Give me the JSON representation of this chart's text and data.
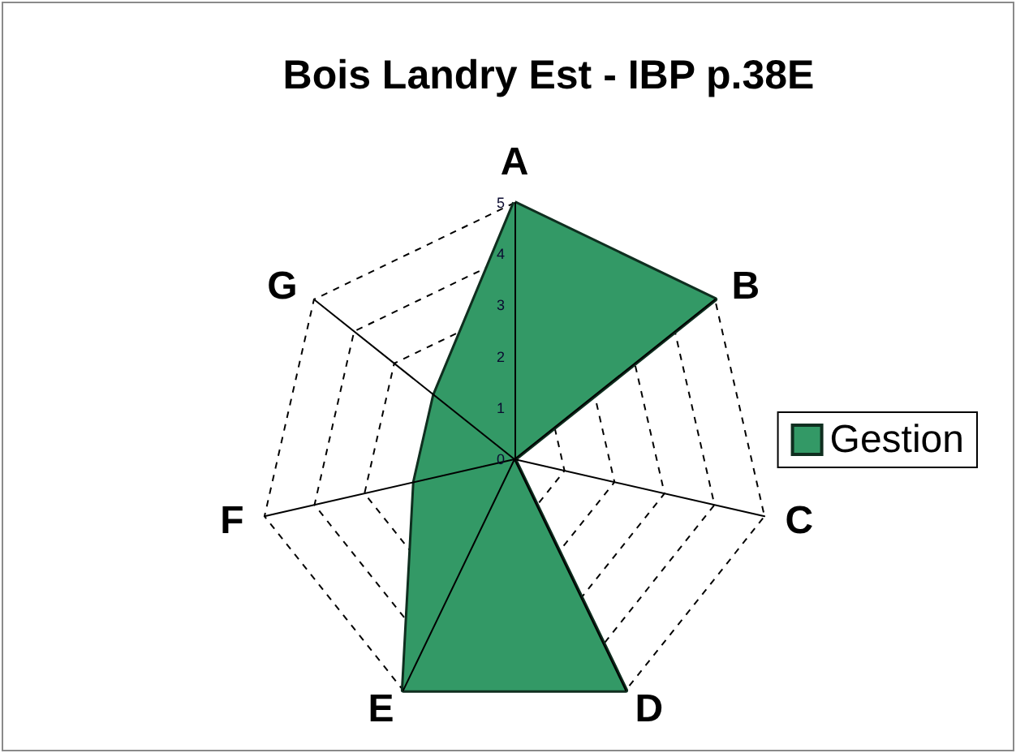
{
  "chart_data": {
    "type": "radar",
    "title": "Bois Landry Est - IBP p.38E",
    "categories": [
      "A",
      "B",
      "C",
      "D",
      "E",
      "F",
      "G"
    ],
    "series": [
      {
        "name": "Gestion",
        "color": "#339966",
        "values": [
          5,
          5,
          0,
          5,
          5,
          2,
          2
        ]
      }
    ],
    "ylim": [
      0,
      5
    ],
    "yticks": [
      0,
      1,
      2,
      3,
      4,
      5
    ],
    "grid": true,
    "legend": "right"
  }
}
